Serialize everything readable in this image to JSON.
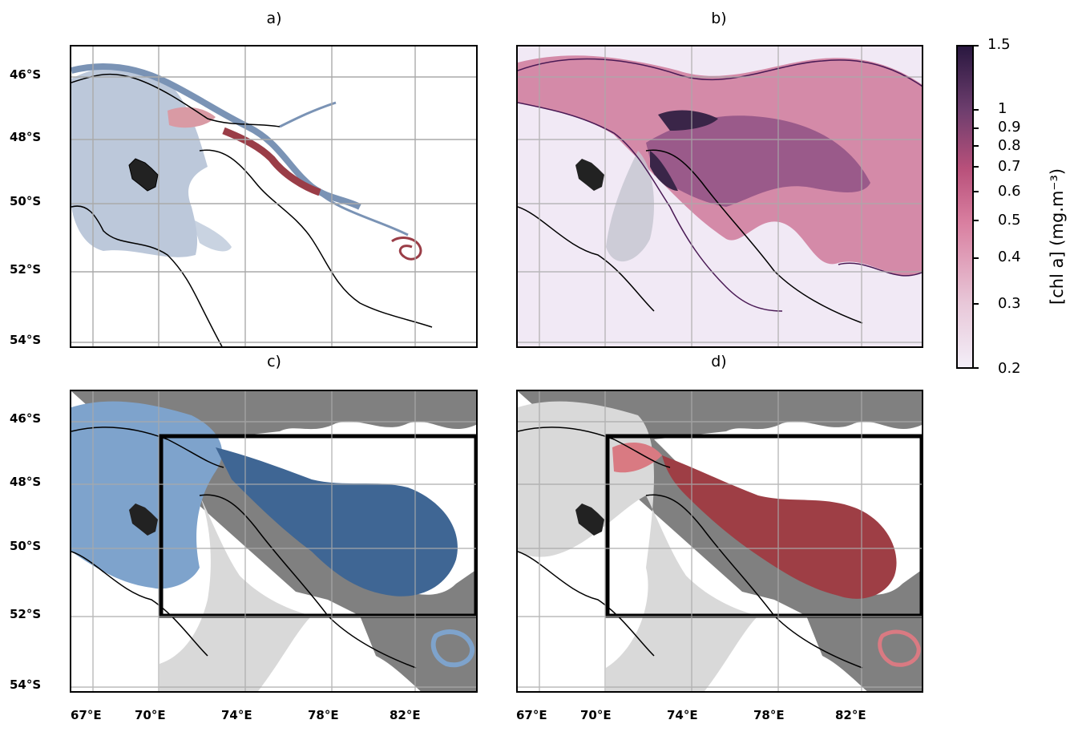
{
  "panels": [
    {
      "id": "a",
      "title": "a)"
    },
    {
      "id": "b",
      "title": "b)"
    },
    {
      "id": "c",
      "title": "c)"
    },
    {
      "id": "d",
      "title": "d)"
    }
  ],
  "lat_ticks": [
    "46°S",
    "48°S",
    "50°S",
    "52°S",
    "54°S"
  ],
  "lon_ticks": [
    "67°E",
    "70°E",
    "74°E",
    "78°E",
    "82°E"
  ],
  "colorbar": {
    "title": "[chl a] (mg.m⁻³)",
    "ticks": [
      "1.5",
      "1",
      "0.9",
      "0.8",
      "0.7",
      "0.6",
      "0.5",
      "0.4",
      "0.3",
      "0.2"
    ],
    "range": [
      0.2,
      1.5
    ],
    "scale": "log",
    "colors": [
      "#f3eef8",
      "#e8c7d8",
      "#d97fa0",
      "#b8507a",
      "#6e3e6e",
      "#2a1840"
    ]
  },
  "colors": {
    "light_blue": "#bcc8da",
    "steel_blue": "#7a93b5",
    "dark_red": "#9a3d47",
    "pink": "#d99aa4",
    "gray_dark": "#808080",
    "gray_light": "#d9d9d9",
    "blue_c": "#3f6694",
    "blue_c_light": "#7ea3cc",
    "red_d": "#9e3e45",
    "red_d_light": "#d97a82"
  }
}
